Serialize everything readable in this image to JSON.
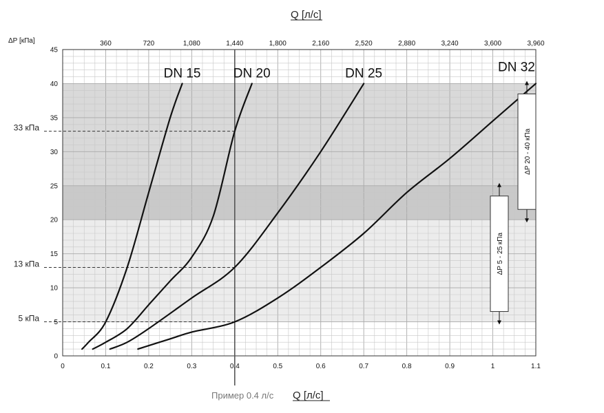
{
  "chart_data": {
    "type": "line",
    "title": "",
    "x_axis": {
      "label": "Q [л/с]",
      "range": [
        0,
        1.1
      ],
      "ticks": [
        0,
        0.1,
        0.2,
        0.3,
        0.4,
        0.5,
        0.6,
        0.7,
        0.8,
        0.9,
        1,
        1.1
      ],
      "tick_labels": [
        "0",
        "0.1",
        "0.2",
        "0.3",
        "0.4",
        "0.5",
        "0.6",
        "0.7",
        "0.8",
        "0.9",
        "1",
        "1.1"
      ]
    },
    "x2_axis": {
      "label": "Q [л/с]",
      "ticks_q": [
        0.1,
        0.2,
        0.3,
        0.4,
        0.5,
        0.6,
        0.7,
        0.8,
        0.9,
        1.0,
        1.1
      ],
      "tick_labels": [
        "360",
        "720",
        "1,080",
        "1,440",
        "1,800",
        "2,160",
        "2,520",
        "2,880",
        "3,240",
        "3,600",
        "3,960"
      ]
    },
    "y_axis": {
      "label": "ΔP [кПа]",
      "range": [
        0,
        45
      ],
      "ticks": [
        0,
        5,
        10,
        15,
        20,
        25,
        30,
        35,
        40,
        45
      ],
      "tick_labels": [
        "0",
        "5",
        "10",
        "15",
        "20",
        "25",
        "30",
        "35",
        "40",
        "45"
      ]
    },
    "grid": true,
    "bands": [
      {
        "from": 5,
        "to": 40,
        "color": "#ececec"
      },
      {
        "from": 20,
        "to": 40,
        "color": "#d9d9d9"
      },
      {
        "from": 20,
        "to": 25,
        "color": "#c9c9c9"
      }
    ],
    "series": [
      {
        "name": "DN 15",
        "x": [
          0.045,
          0.06,
          0.1,
          0.15,
          0.2,
          0.25,
          0.278
        ],
        "y": [
          1,
          2,
          5,
          13,
          24,
          35,
          40
        ]
      },
      {
        "name": "DN 20",
        "x": [
          0.07,
          0.1,
          0.15,
          0.2,
          0.25,
          0.3,
          0.35,
          0.4,
          0.44
        ],
        "y": [
          1,
          2,
          4,
          7.5,
          11,
          14.5,
          20.5,
          33,
          40
        ]
      },
      {
        "name": "DN 25",
        "x": [
          0.11,
          0.15,
          0.2,
          0.3,
          0.4,
          0.5,
          0.6,
          0.7
        ],
        "y": [
          1,
          2,
          4,
          8.5,
          13,
          21,
          30,
          40
        ]
      },
      {
        "name": "DN 32",
        "x": [
          0.175,
          0.25,
          0.3,
          0.4,
          0.5,
          0.6,
          0.7,
          0.8,
          0.9,
          1.0,
          1.1
        ],
        "y": [
          1,
          2.5,
          3.5,
          5,
          8.5,
          13,
          18,
          24,
          29,
          34.5,
          40
        ]
      }
    ],
    "example": {
      "x": 0.4,
      "label": "Пример 0.4 л/с"
    },
    "reference_levels": [
      {
        "y": 33,
        "label": "33 кПа"
      },
      {
        "y": 13,
        "label": "13 кПа"
      },
      {
        "y": 5,
        "label": "5 кПа"
      }
    ],
    "range_markers": [
      {
        "from": 5,
        "to": 25,
        "label": "ΔP 5 - 25 кПа"
      },
      {
        "from": 20,
        "to": 40,
        "label": "ΔP 20 - 40 кПа"
      }
    ],
    "colors": {
      "curve": "#111111",
      "grid_minor": "#c7c7c7",
      "grid_major": "#a9a9a9",
      "example_line": "#555555"
    }
  }
}
